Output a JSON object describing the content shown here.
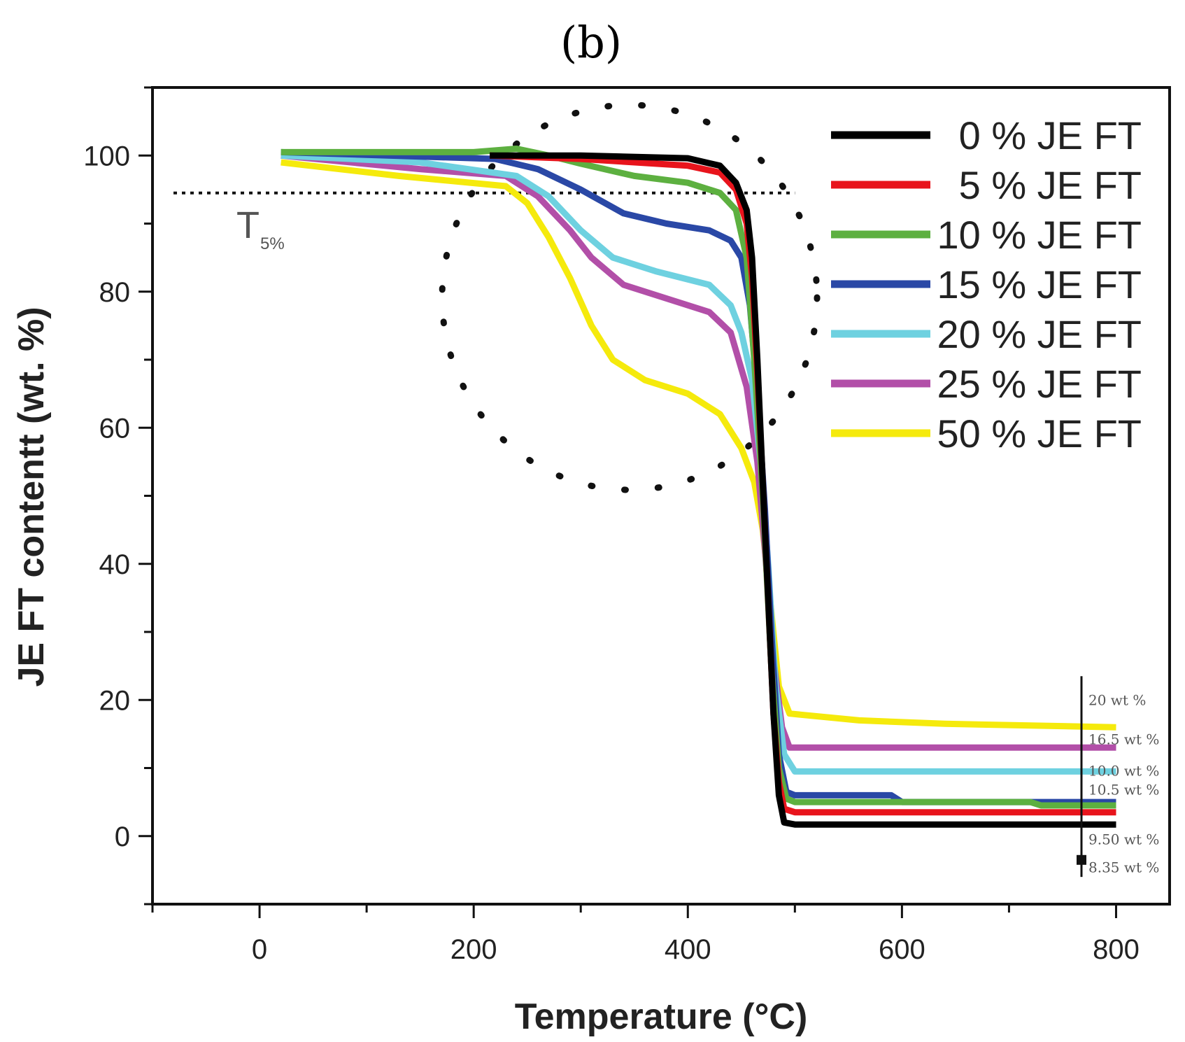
{
  "chart_data": {
    "type": "line",
    "panel_label": "(b)",
    "xlabel": "Temperature (°C)",
    "ylabel": "JE FT contentt (wt. %)",
    "xlim": [
      -100,
      850
    ],
    "ylim": [
      -10,
      110
    ],
    "xticks": [
      0,
      200,
      400,
      600,
      800
    ],
    "xtick_labels": [
      "0",
      "200",
      "400",
      "600",
      "800"
    ],
    "yticks": [
      0,
      20,
      40,
      60,
      80,
      100
    ],
    "ytick_labels": [
      "0",
      "20",
      "40",
      "60",
      "80",
      "100"
    ],
    "legend_position": "top-right",
    "threshold": {
      "y": 94.5,
      "label": "T",
      "sub": "5%"
    },
    "series": [
      {
        "name": "0 % JE FT",
        "color": "#000000",
        "points": [
          [
            215,
            100
          ],
          [
            300,
            100
          ],
          [
            400,
            99.6
          ],
          [
            430,
            98.5
          ],
          [
            445,
            96
          ],
          [
            455,
            92
          ],
          [
            460,
            85
          ],
          [
            465,
            70
          ],
          [
            470,
            52
          ],
          [
            475,
            35
          ],
          [
            480,
            18
          ],
          [
            485,
            6
          ],
          [
            490,
            2
          ],
          [
            500,
            1.7
          ],
          [
            800,
            1.7
          ]
        ]
      },
      {
        "name": "5 % JE FT",
        "color": "#e8141c",
        "points": [
          [
            215,
            100
          ],
          [
            300,
            99.5
          ],
          [
            400,
            98.5
          ],
          [
            430,
            97.5
          ],
          [
            445,
            95
          ],
          [
            455,
            90
          ],
          [
            460,
            82
          ],
          [
            465,
            68
          ],
          [
            470,
            52
          ],
          [
            475,
            35
          ],
          [
            480,
            18
          ],
          [
            485,
            8
          ],
          [
            490,
            4
          ],
          [
            500,
            3.5
          ],
          [
            800,
            3.5
          ]
        ]
      },
      {
        "name": "10 % JE FT",
        "color": "#5db040",
        "points": [
          [
            20,
            100.5
          ],
          [
            200,
            100.5
          ],
          [
            240,
            101
          ],
          [
            270,
            100
          ],
          [
            300,
            98.8
          ],
          [
            350,
            97
          ],
          [
            400,
            96
          ],
          [
            430,
            94.5
          ],
          [
            445,
            92
          ],
          [
            455,
            85
          ],
          [
            462,
            70
          ],
          [
            470,
            50
          ],
          [
            478,
            25
          ],
          [
            485,
            10
          ],
          [
            492,
            5.5
          ],
          [
            500,
            5
          ],
          [
            720,
            5
          ],
          [
            730,
            4.5
          ],
          [
            800,
            4.5
          ]
        ]
      },
      {
        "name": "15 % JE FT",
        "color": "#2a48a6",
        "points": [
          [
            20,
            100.5
          ],
          [
            220,
            99.5
          ],
          [
            260,
            98
          ],
          [
            300,
            95
          ],
          [
            340,
            91.5
          ],
          [
            380,
            90
          ],
          [
            420,
            89
          ],
          [
            440,
            87.5
          ],
          [
            450,
            85
          ],
          [
            458,
            78
          ],
          [
            465,
            65
          ],
          [
            472,
            48
          ],
          [
            478,
            30
          ],
          [
            485,
            12
          ],
          [
            492,
            6.5
          ],
          [
            500,
            6
          ],
          [
            590,
            6
          ],
          [
            600,
            5
          ],
          [
            800,
            5
          ]
        ]
      },
      {
        "name": "20 % JE FT",
        "color": "#6ed1e0",
        "points": [
          [
            20,
            100
          ],
          [
            150,
            99
          ],
          [
            240,
            97
          ],
          [
            270,
            94
          ],
          [
            300,
            89
          ],
          [
            330,
            85
          ],
          [
            370,
            83
          ],
          [
            420,
            81
          ],
          [
            440,
            78
          ],
          [
            450,
            74
          ],
          [
            460,
            67
          ],
          [
            468,
            55
          ],
          [
            475,
            40
          ],
          [
            482,
            22
          ],
          [
            490,
            12
          ],
          [
            500,
            9.5
          ],
          [
            800,
            9.5
          ]
        ]
      },
      {
        "name": "25 % JE FT",
        "color": "#b24fa8",
        "points": [
          [
            20,
            100
          ],
          [
            150,
            98
          ],
          [
            230,
            97
          ],
          [
            260,
            94
          ],
          [
            290,
            89
          ],
          [
            310,
            85
          ],
          [
            340,
            81
          ],
          [
            380,
            79
          ],
          [
            420,
            77
          ],
          [
            440,
            74
          ],
          [
            455,
            66
          ],
          [
            465,
            55
          ],
          [
            472,
            42
          ],
          [
            480,
            26
          ],
          [
            488,
            16
          ],
          [
            495,
            13
          ],
          [
            800,
            13
          ]
        ]
      },
      {
        "name": "50 % JE FT",
        "color": "#f5ea0c",
        "points": [
          [
            20,
            99
          ],
          [
            130,
            97
          ],
          [
            230,
            95.5
          ],
          [
            250,
            93
          ],
          [
            270,
            88
          ],
          [
            290,
            82
          ],
          [
            310,
            75
          ],
          [
            330,
            70
          ],
          [
            360,
            67
          ],
          [
            400,
            65
          ],
          [
            430,
            62
          ],
          [
            450,
            57
          ],
          [
            462,
            52
          ],
          [
            470,
            45
          ],
          [
            478,
            33
          ],
          [
            485,
            22
          ],
          [
            495,
            18
          ],
          [
            560,
            17
          ],
          [
            640,
            16.5
          ],
          [
            800,
            16
          ]
        ]
      }
    ],
    "end_annotations": [
      {
        "text": "20 wt %",
        "color": "#f5ea0c",
        "y": 20
      },
      {
        "text": "16.5 wt %",
        "color": "#b24fa8",
        "y": 14.2
      },
      {
        "text": "10.0 wt %",
        "color": "#6ed1e0",
        "y": 9.6
      },
      {
        "text": "10.5 wt %",
        "color": "#2a48a6",
        "y": 6.8
      },
      {
        "text": "9.50 wt %",
        "color": "#000000",
        "y": -0.5
      },
      {
        "text": "8.35 wt %",
        "color": "#000000",
        "y": -4.6
      }
    ]
  }
}
